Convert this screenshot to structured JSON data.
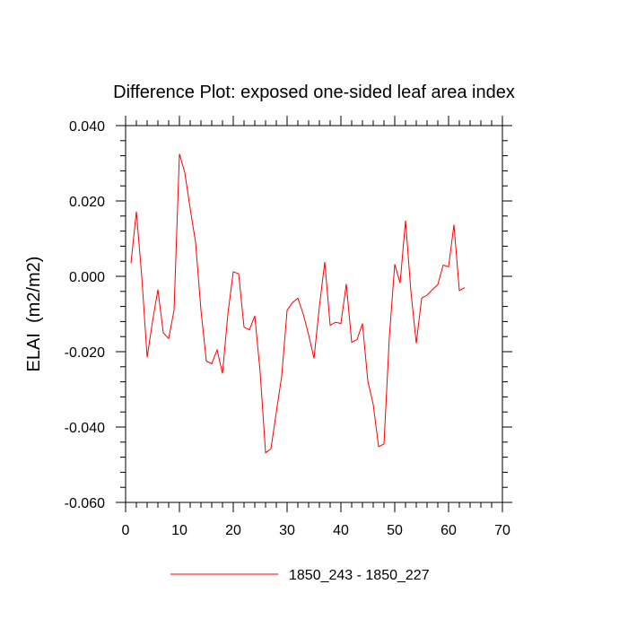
{
  "chart_data": {
    "type": "line",
    "title": "Difference Plot: exposed one-sided leaf area index",
    "xlabel": "",
    "ylabel": "ELAI  (m2/m2)",
    "xlim": [
      0,
      70
    ],
    "ylim": [
      -0.06,
      0.04
    ],
    "xticks": [
      0,
      10,
      20,
      30,
      40,
      50,
      60,
      70
    ],
    "xtick_labels": [
      "0",
      "10",
      "20",
      "30",
      "40",
      "50",
      "60",
      "70"
    ],
    "yticks": [
      -0.06,
      -0.04,
      -0.02,
      0.0,
      0.02,
      0.04
    ],
    "ytick_labels": [
      "-0.060",
      "-0.040",
      "-0.020",
      "0.000",
      "0.020",
      "0.040"
    ],
    "grid": false,
    "legend_position": "bottom-center",
    "series": [
      {
        "name": "1850_243 - 1850_227",
        "color": "#ff0000",
        "x": [
          1,
          2,
          3,
          4,
          5,
          6,
          7,
          8,
          9,
          10,
          11,
          12,
          13,
          14,
          15,
          16,
          17,
          18,
          19,
          20,
          21,
          22,
          23,
          24,
          25,
          26,
          27,
          28,
          29,
          30,
          31,
          32,
          33,
          34,
          35,
          36,
          37,
          38,
          39,
          40,
          41,
          42,
          43,
          44,
          45,
          46,
          47,
          48,
          49,
          50,
          51,
          52,
          53,
          54,
          55,
          56,
          57,
          58,
          59,
          60,
          61,
          62,
          63
        ],
        "values": [
          0.0035,
          0.0172,
          0.0,
          -0.0215,
          -0.012,
          -0.0035,
          -0.015,
          -0.0165,
          -0.009,
          0.0325,
          0.0275,
          0.018,
          0.009,
          -0.009,
          -0.0225,
          -0.0232,
          -0.0195,
          -0.0258,
          -0.01,
          0.0012,
          0.0007,
          -0.0135,
          -0.0142,
          -0.0105,
          -0.0255,
          -0.0468,
          -0.0458,
          -0.036,
          -0.0265,
          -0.009,
          -0.007,
          -0.0058,
          -0.01,
          -0.0155,
          -0.0218,
          -0.008,
          0.0038,
          -0.013,
          -0.0122,
          -0.0125,
          -0.002,
          -0.0175,
          -0.0168,
          -0.0125,
          -0.0278,
          -0.034,
          -0.0452,
          -0.0445,
          -0.016,
          0.0032,
          -0.0018,
          0.0148,
          -0.004,
          -0.0178,
          -0.0058,
          -0.005,
          -0.0035,
          -0.0022,
          0.003,
          0.0025,
          0.0137,
          -0.0038,
          -0.003
        ]
      }
    ]
  }
}
